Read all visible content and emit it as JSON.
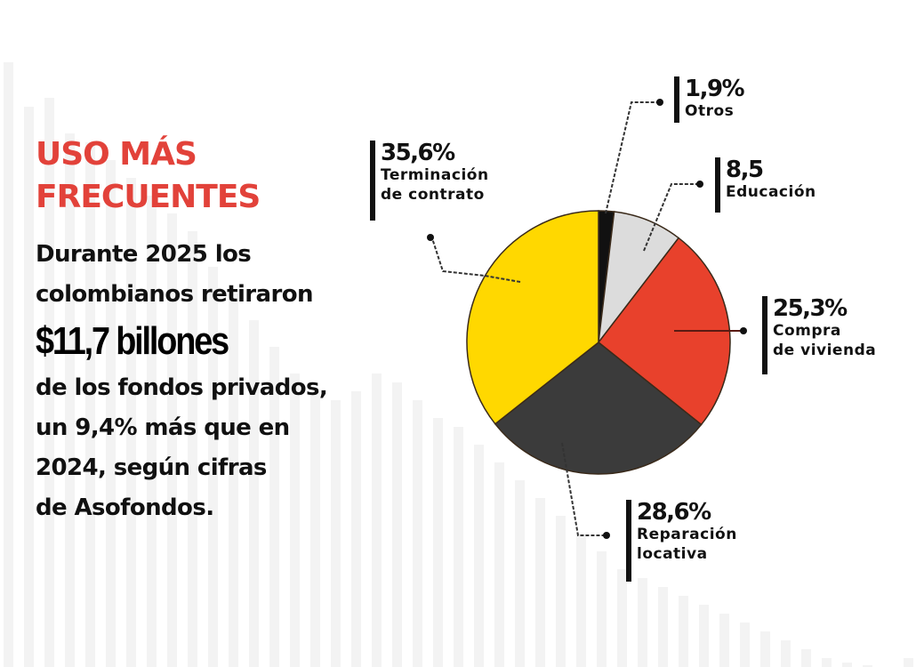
{
  "header": {
    "title_line1": "USO MÁS",
    "title_line2": "FRECUENTES"
  },
  "body": {
    "line1": "Durante 2025 los",
    "line2": "colombianos retiraron",
    "highlight": "$11,7 billones",
    "line3": "de los fondos privados,",
    "line4": "un 9,4% más que en",
    "line5": "2024, según cifras",
    "line6": "de Asofondos."
  },
  "colors": {
    "title": "#e2423a",
    "otros": "#111111",
    "educacion": "#dcdcdc",
    "compra": "#e8412c",
    "reparacion": "#3b3b3b",
    "terminacion": "#ffd800"
  },
  "labels": [
    {
      "pct": "1,9%",
      "cat1": "Otros",
      "cat2": ""
    },
    {
      "pct": "8,5",
      "cat1": "Educación",
      "cat2": ""
    },
    {
      "pct": "25,3%",
      "cat1": "Compra",
      "cat2": "de vivienda"
    },
    {
      "pct": "28,6%",
      "cat1": "Reparación",
      "cat2": "locativa"
    },
    {
      "pct": "35,6%",
      "cat1": "Terminación",
      "cat2": "de contrato"
    }
  ],
  "chart_data": {
    "type": "pie",
    "title": "USO MÁS FRECUENTES",
    "categories": [
      "Otros",
      "Educación",
      "Compra de vivienda",
      "Reparación locativa",
      "Terminación de contrato"
    ],
    "values": [
      1.9,
      8.5,
      25.3,
      28.6,
      35.6
    ],
    "unit": "%",
    "colors": [
      "#111111",
      "#dcdcdc",
      "#e8412c",
      "#3b3b3b",
      "#ffd800"
    ],
    "start_angle": "12 o'clock, clockwise",
    "annotation": "Durante 2025 los colombianos retiraron $11,7 billones de los fondos privados, un 9,4% más que en 2024, según cifras de Asofondos."
  }
}
